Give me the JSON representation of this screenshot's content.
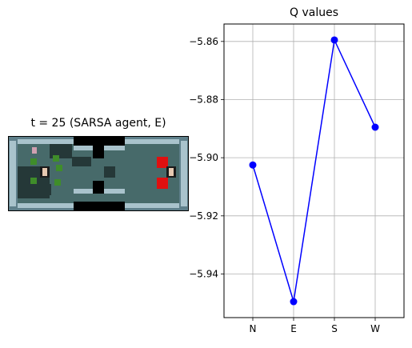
{
  "environment_panel": {
    "title": "t = 25 (SARSA agent, E)"
  },
  "chart_data": {
    "type": "line",
    "title": "Q values",
    "categories": [
      "N",
      "E",
      "S",
      "W"
    ],
    "values": [
      -5.9025,
      -5.9495,
      -5.8595,
      -5.8895
    ],
    "ylim": [
      -5.955,
      -5.854
    ],
    "yticks": [
      -5.86,
      -5.88,
      -5.9,
      -5.92,
      -5.94
    ],
    "ytick_labels": [
      "−5.86",
      "−5.88",
      "−5.90",
      "−5.92",
      "−5.94"
    ],
    "xlabel": "",
    "ylabel": "",
    "grid": true,
    "line_color": "#0000ff",
    "marker": "circle"
  }
}
